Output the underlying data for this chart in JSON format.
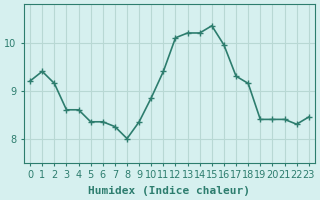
{
  "xlabel": "Humidex (Indice chaleur)",
  "ylabel": "",
  "x_values": [
    0,
    1,
    2,
    3,
    4,
    5,
    6,
    7,
    8,
    9,
    10,
    11,
    12,
    13,
    14,
    15,
    16,
    17,
    18,
    19,
    20,
    21,
    22,
    23
  ],
  "y_values": [
    9.2,
    9.4,
    9.15,
    8.6,
    8.6,
    8.35,
    8.35,
    8.25,
    8.0,
    8.35,
    8.85,
    9.4,
    10.1,
    10.2,
    10.2,
    10.35,
    9.95,
    9.3,
    9.15,
    8.4,
    8.4,
    8.4,
    8.3,
    8.45
  ],
  "line_color": "#2d7d6e",
  "marker": "+",
  "marker_size": 5,
  "bg_color": "#d6f0ef",
  "grid_color": "#b8d8d4",
  "axes_color": "#2d7d6e",
  "tick_color": "#2d7d6e",
  "label_color": "#2d7d6e",
  "ylim": [
    7.5,
    10.8
  ],
  "yticks": [
    8,
    9,
    10
  ],
  "xticks": [
    0,
    1,
    2,
    3,
    4,
    5,
    6,
    7,
    8,
    9,
    10,
    11,
    12,
    13,
    14,
    15,
    16,
    17,
    18,
    19,
    20,
    21,
    22,
    23
  ],
  "xlabel_fontsize": 8,
  "tick_fontsize": 7,
  "line_width": 1.2
}
